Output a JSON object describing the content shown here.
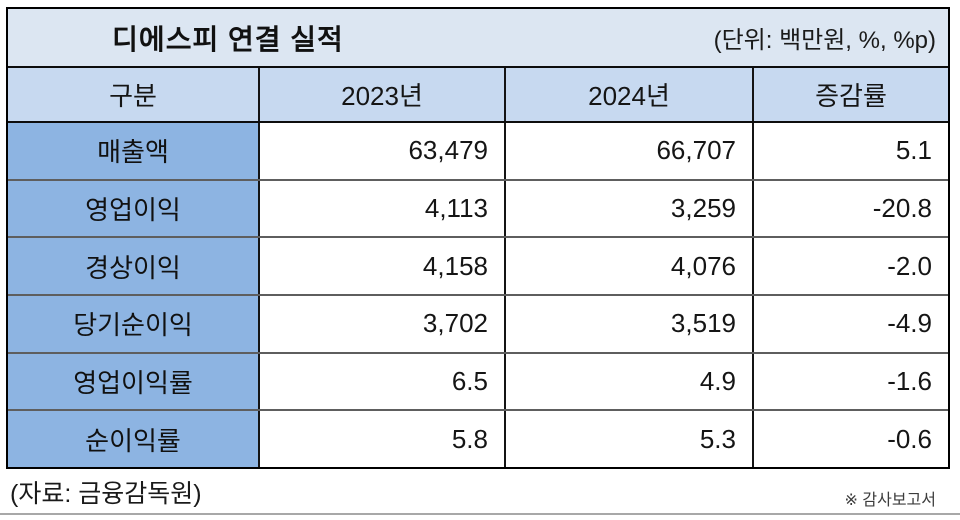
{
  "table": {
    "title": "디에스피 연결 실적",
    "unit_note": "(단위: 백만원, %, %p)",
    "columns": [
      "구분",
      "2023년",
      "2024년",
      "증감률"
    ],
    "rows": [
      {
        "label": "매출액",
        "values": [
          "63,479",
          "66,707",
          "5.1"
        ]
      },
      {
        "label": "영업이익",
        "values": [
          "4,113",
          "3,259",
          "-20.8"
        ]
      },
      {
        "label": "경상이익",
        "values": [
          "4,158",
          "4,076",
          "-2.0"
        ]
      },
      {
        "label": "당기순이익",
        "values": [
          "3,702",
          "3,519",
          "-4.9"
        ]
      },
      {
        "label": "영업이익률",
        "values": [
          "6.5",
          "4.9",
          "-1.6"
        ]
      },
      {
        "label": "순이익률",
        "values": [
          "5.8",
          "5.3",
          "-0.6"
        ]
      }
    ]
  },
  "footer": {
    "source": "(자료: 금융감독원)",
    "note": "※ 감사보고서"
  },
  "colors": {
    "title_bg": "#dce6f2",
    "header_bg": "#c7d9f0",
    "label_bg": "#8db4e2",
    "outer_border": "#000000",
    "inner_line": "#5e5e5e",
    "bottom_rule": "#a8a8a8"
  },
  "chart_data": {
    "type": "table",
    "title": "디에스피 연결 실적",
    "unit": "백만원, %, %p",
    "columns": [
      "구분",
      "2023년",
      "2024년",
      "증감률"
    ],
    "rows": [
      [
        "매출액",
        63479,
        66707,
        5.1
      ],
      [
        "영업이익",
        4113,
        3259,
        -20.8
      ],
      [
        "경상이익",
        4158,
        4076,
        -2.0
      ],
      [
        "당기순이익",
        3702,
        3519,
        -4.9
      ],
      [
        "영업이익률",
        6.5,
        4.9,
        -1.6
      ],
      [
        "순이익률",
        5.8,
        5.3,
        -0.6
      ]
    ],
    "source": "금융감독원",
    "note": "감사보고서"
  }
}
